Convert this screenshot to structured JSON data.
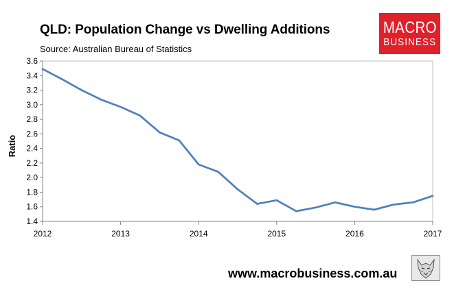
{
  "header": {
    "title": "QLD: Population Change vs Dwelling Additions",
    "source": "Source: Australian Bureau of Statistics"
  },
  "logo": {
    "line1": "MACRO",
    "line2": "BUSINESS",
    "color": "#e0202a"
  },
  "footer": {
    "website": "www.macrobusiness.com.au",
    "badge_icon": "wolf-mascot-icon"
  },
  "chart_data": {
    "type": "line",
    "title": "QLD: Population Change vs Dwelling Additions",
    "xlabel": "",
    "ylabel": "Ratio",
    "xlim": [
      2012,
      2017
    ],
    "ylim": [
      1.4,
      3.6
    ],
    "yticks": [
      1.4,
      1.6,
      1.8,
      2.0,
      2.2,
      2.4,
      2.6,
      2.8,
      3.0,
      3.2,
      3.4,
      3.6
    ],
    "ytick_labels": [
      "1.4",
      "1.6",
      "1.8",
      "2.0",
      "2.2",
      "2.4",
      "2.6",
      "2.8",
      "3.0",
      "3.2",
      "3.4",
      "3.6"
    ],
    "xticks": [
      2012,
      2013,
      2014,
      2015,
      2016,
      2017
    ],
    "xtick_labels": [
      "2012",
      "2013",
      "2014",
      "2015",
      "2016",
      "2017"
    ],
    "grid": false,
    "series": [
      {
        "name": "Ratio",
        "color": "#4f81bd",
        "x": [
          2012.0,
          2012.25,
          2012.5,
          2012.75,
          2013.0,
          2013.25,
          2013.5,
          2013.75,
          2014.0,
          2014.25,
          2014.5,
          2014.75,
          2015.0,
          2015.25,
          2015.5,
          2015.75,
          2016.0,
          2016.25,
          2016.5,
          2016.75,
          2017.0
        ],
        "values": [
          3.49,
          3.35,
          3.2,
          3.07,
          2.97,
          2.85,
          2.62,
          2.51,
          2.18,
          2.08,
          1.84,
          1.64,
          1.69,
          1.54,
          1.59,
          1.66,
          1.6,
          1.56,
          1.63,
          1.66,
          1.75
        ]
      }
    ]
  }
}
